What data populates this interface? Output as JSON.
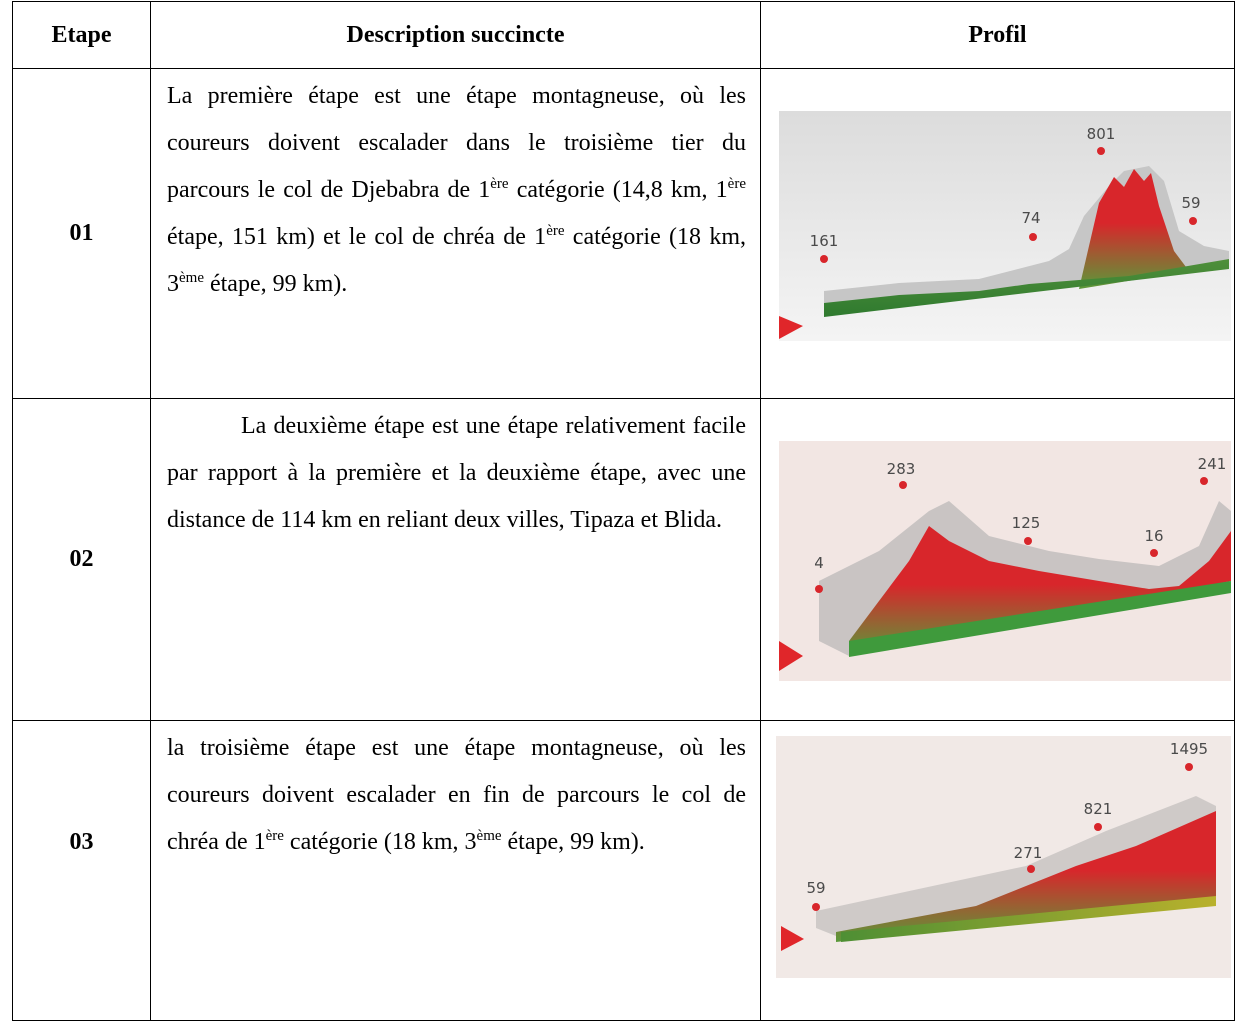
{
  "header": [
    "Etape",
    "Description succincte",
    "Profil"
  ],
  "rows": [
    {
      "etape": "01",
      "description": [
        {
          "text": "La première étape est une étape montagneuse, où les coureurs doivent escalader dans le troisième tier du parcours le col de Djebabra de 1"
        },
        {
          "sup": "ère"
        },
        {
          "text": " catégorie (14,8 km, 1"
        },
        {
          "sup": "ère"
        },
        {
          "text": " étape, 151 km) et le col de chréa de 1"
        },
        {
          "sup": "ère"
        },
        {
          "text": " catégorie (18 km, 3"
        },
        {
          "sup": "ème"
        },
        {
          "text": " étape, 99 km)."
        }
      ],
      "profile_labels": [
        161,
        74,
        801,
        59
      ]
    },
    {
      "etape": "02",
      "description": [
        {
          "text": "La deuxième étape est une étape relativement facile par rapport à la  première et la deuxième étape, avec une distance de 114 km en reliant deux villes, Tipaza et Blida."
        }
      ],
      "profile_labels": [
        4,
        283,
        125,
        16,
        241
      ]
    },
    {
      "etape": "03",
      "description": [
        {
          "text": "la troisième étape est une étape montagneuse, où les coureurs doivent escalader  en fin de parcours le col de chréa de 1"
        },
        {
          "sup": "ère"
        },
        {
          "text": " catégorie (18 km, 3"
        },
        {
          "sup": "ème"
        },
        {
          "text": " étape, 99 km)."
        }
      ],
      "profile_labels": [
        59,
        271,
        821,
        1495
      ]
    }
  ]
}
